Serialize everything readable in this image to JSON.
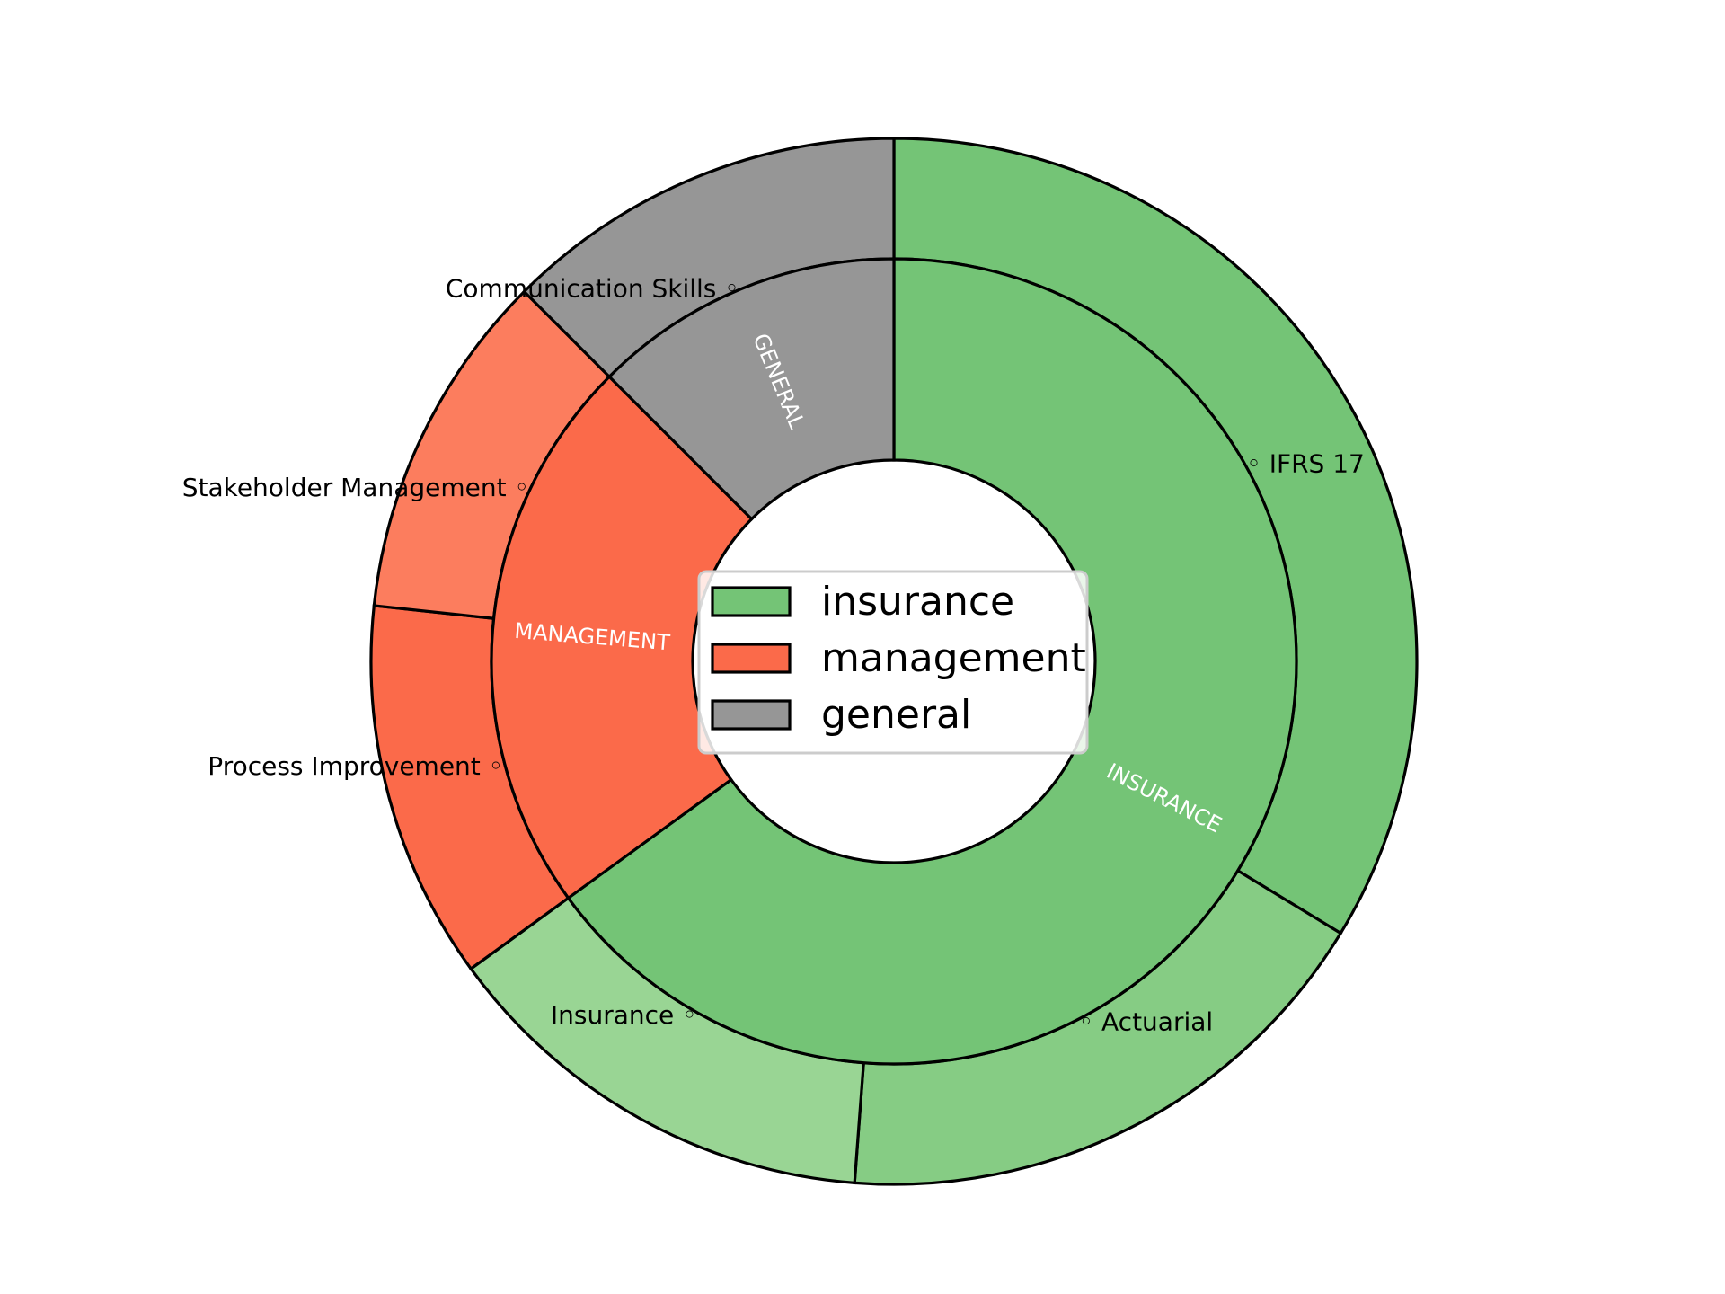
{
  "chart_data": {
    "type": "pie",
    "variant": "nested-donut",
    "title": "",
    "legend": {
      "placement": "center",
      "entries": [
        {
          "label": "insurance",
          "color": "#74c476"
        },
        {
          "label": "management",
          "color": "#fb6a4a"
        },
        {
          "label": "general",
          "color": "#969696"
        }
      ]
    },
    "inner_ring": [
      {
        "label": "INSURANCE",
        "category": "insurance",
        "value": 65,
        "color": "#74c476"
      },
      {
        "label": "MANAGEMENT",
        "category": "management",
        "value": 22.5,
        "color": "#fb6a4a"
      },
      {
        "label": "GENERAL",
        "category": "general",
        "value": 12.5,
        "color": "#969696"
      }
    ],
    "outer_ring": [
      {
        "label": "IFRS 17",
        "category": "insurance",
        "value": 33.7,
        "color": "#74c476"
      },
      {
        "label": "Actuarial",
        "category": "insurance",
        "value": 17.5,
        "color": "#86cc84"
      },
      {
        "label": "Insurance",
        "category": "insurance",
        "value": 13.8,
        "color": "#99d594"
      },
      {
        "label": "Process Improvement",
        "category": "management",
        "value": 11.7,
        "color": "#fb6a4a"
      },
      {
        "label": "Stakeholder Management",
        "category": "management",
        "value": 10.8,
        "color": "#fc7d5e"
      },
      {
        "label": "Communication Skills",
        "category": "general",
        "value": 12.5,
        "color": "#969696"
      }
    ],
    "outer_marker": "◦"
  }
}
